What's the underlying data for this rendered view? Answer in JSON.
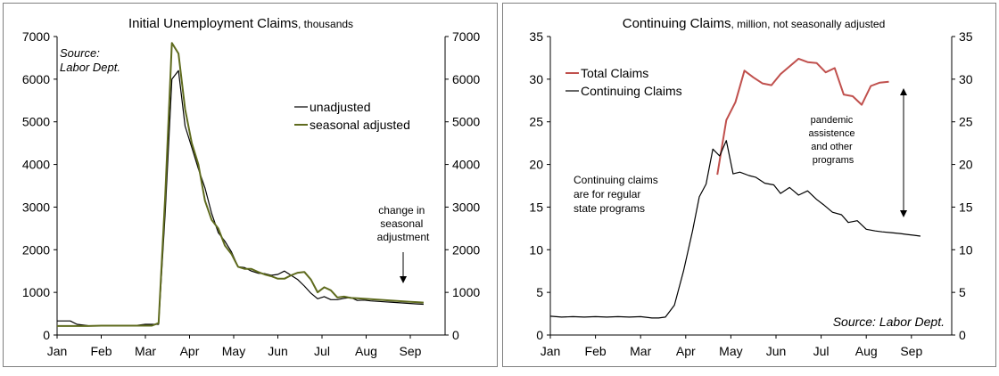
{
  "chart_data": [
    {
      "type": "line",
      "title": "Initial Unemployment Claims",
      "subtitle": ", thousands",
      "x_ticks": [
        "Jan",
        "Feb",
        "Mar",
        "Apr",
        "May",
        "Jun",
        "Jul",
        "Aug",
        "Sep"
      ],
      "ylim": [
        0,
        7000
      ],
      "y_ticks": [
        "0",
        "1000",
        "2000",
        "3000",
        "4000",
        "5000",
        "6000",
        "7000"
      ],
      "y_tick_values": [
        0,
        1000,
        2000,
        3000,
        4000,
        5000,
        6000,
        7000
      ],
      "secondary_y_ticks": [
        "0",
        "1000",
        "2000",
        "3000",
        "4000",
        "5000",
        "6000",
        "7000"
      ],
      "grid": false,
      "legend_position": "top-right",
      "source_lines": [
        "Source:",
        "Labor Dept."
      ],
      "annotation_lines": [
        "change in",
        "seasonal",
        "adjustment"
      ],
      "colors": {
        "unadjusted": "#000000",
        "seasonal_adjusted": "#5f6b1e"
      },
      "series": [
        {
          "name": "unadjusted",
          "x": [
            0.0,
            0.3,
            0.45,
            0.7,
            1.0,
            1.3,
            1.5,
            1.75,
            2.0,
            2.15,
            2.3,
            2.45,
            2.6,
            2.75,
            2.9,
            3.05,
            3.2,
            3.35,
            3.5,
            3.65,
            3.8,
            3.95,
            4.1,
            4.25,
            4.4,
            4.55,
            4.7,
            4.85,
            5.0,
            5.15,
            5.3,
            5.45,
            5.6,
            5.75,
            5.9,
            6.05,
            6.2,
            6.35,
            6.5,
            6.65,
            6.8,
            6.95,
            7.1,
            7.25,
            7.4,
            7.55,
            7.7,
            7.85,
            8.0,
            8.15,
            8.3
          ],
          "y": [
            330,
            330,
            250,
            220,
            210,
            210,
            220,
            220,
            250,
            250,
            250,
            2900,
            6000,
            6200,
            4900,
            4400,
            3900,
            3450,
            2850,
            2400,
            2200,
            1950,
            1600,
            1580,
            1500,
            1450,
            1440,
            1400,
            1420,
            1500,
            1400,
            1300,
            1150,
            980,
            850,
            900,
            830,
            830,
            860,
            880,
            810,
            820,
            800,
            790,
            780,
            770,
            760,
            750,
            740,
            730,
            720
          ]
        },
        {
          "name": "seasonal adjusted",
          "x": [
            0.0,
            0.3,
            0.45,
            0.7,
            1.0,
            1.3,
            1.5,
            1.75,
            2.0,
            2.15,
            2.3,
            2.45,
            2.6,
            2.75,
            2.9,
            3.05,
            3.2,
            3.35,
            3.5,
            3.65,
            3.8,
            3.95,
            4.1,
            4.25,
            4.4,
            4.55,
            4.7,
            4.85,
            5.0,
            5.15,
            5.3,
            5.45,
            5.6,
            5.75,
            5.9,
            6.05,
            6.2,
            6.35,
            6.5,
            6.65,
            6.8,
            6.95,
            7.1,
            7.25,
            7.4,
            7.55,
            7.7,
            7.85,
            8.0,
            8.15,
            8.3
          ],
          "y": [
            210,
            210,
            210,
            210,
            220,
            220,
            220,
            220,
            220,
            220,
            280,
            3300,
            6850,
            6600,
            5300,
            4500,
            4000,
            3150,
            2700,
            2500,
            2100,
            1900,
            1600,
            1550,
            1550,
            1480,
            1420,
            1380,
            1320,
            1320,
            1400,
            1460,
            1480,
            1300,
            1000,
            1120,
            1050,
            880,
            900,
            870,
            860,
            850,
            840,
            830,
            820,
            810,
            800,
            790,
            780,
            770,
            760
          ]
        }
      ]
    },
    {
      "type": "line",
      "title": "Continuing Claims",
      "subtitle": ", million, not seasonally adjusted",
      "x_ticks": [
        "Jan",
        "Feb",
        "Mar",
        "Apr",
        "May",
        "Jun",
        "Jul",
        "Aug",
        "Sep"
      ],
      "ylim": [
        0,
        35
      ],
      "y_ticks": [
        "0",
        "5",
        "10",
        "15",
        "20",
        "25",
        "30",
        "35"
      ],
      "y_tick_values": [
        0,
        5,
        10,
        15,
        20,
        25,
        30,
        35
      ],
      "secondary_y_ticks": [
        "0",
        "5",
        "10",
        "15",
        "20",
        "25",
        "30",
        "35"
      ],
      "grid": false,
      "legend_position": "top-left",
      "source_line": "Source: Labor Dept.",
      "annotation_regular_lines": [
        "Continuing claims",
        "are for regular",
        "state programs"
      ],
      "annotation_pandemic_lines": [
        "pandemic",
        "assistence",
        "and other",
        "programs"
      ],
      "colors": {
        "total": "#c0504d",
        "continuing": "#000000"
      },
      "series": [
        {
          "name": "Total Claims",
          "x": [
            3.7,
            3.9,
            4.1,
            4.3,
            4.5,
            4.7,
            4.9,
            5.1,
            5.3,
            5.5,
            5.7,
            5.9,
            6.1,
            6.3,
            6.5,
            6.7,
            6.9,
            7.1,
            7.3,
            7.5
          ],
          "y": [
            18.8,
            25.2,
            27.3,
            31.0,
            30.2,
            29.5,
            29.3,
            30.6,
            31.5,
            32.4,
            32.0,
            31.9,
            30.8,
            31.3,
            28.2,
            28.0,
            27.0,
            29.2,
            29.6,
            29.7
          ]
        },
        {
          "name": "Continuing Claims",
          "x": [
            0.0,
            0.25,
            0.5,
            0.75,
            1.0,
            1.25,
            1.5,
            1.75,
            2.0,
            2.25,
            2.4,
            2.55,
            2.75,
            2.95,
            3.15,
            3.3,
            3.45,
            3.6,
            3.75,
            3.9,
            4.05,
            4.2,
            4.4,
            4.55,
            4.75,
            4.95,
            5.1,
            5.3,
            5.5,
            5.7,
            5.9,
            6.05,
            6.25,
            6.45,
            6.6,
            6.8,
            7.0,
            7.2,
            7.35,
            7.55,
            7.75,
            7.9,
            8.05,
            8.2
          ],
          "y": [
            2.2,
            2.1,
            2.15,
            2.1,
            2.15,
            2.1,
            2.15,
            2.1,
            2.15,
            2.0,
            2.0,
            2.1,
            3.5,
            7.5,
            12.2,
            16.2,
            17.7,
            21.8,
            21.0,
            22.8,
            18.9,
            19.1,
            18.7,
            18.5,
            17.8,
            17.6,
            16.6,
            17.3,
            16.4,
            16.9,
            15.9,
            15.3,
            14.4,
            14.1,
            13.2,
            13.4,
            12.4,
            12.2,
            12.1,
            12.0,
            11.9,
            11.8,
            11.7,
            11.6
          ]
        }
      ]
    }
  ]
}
